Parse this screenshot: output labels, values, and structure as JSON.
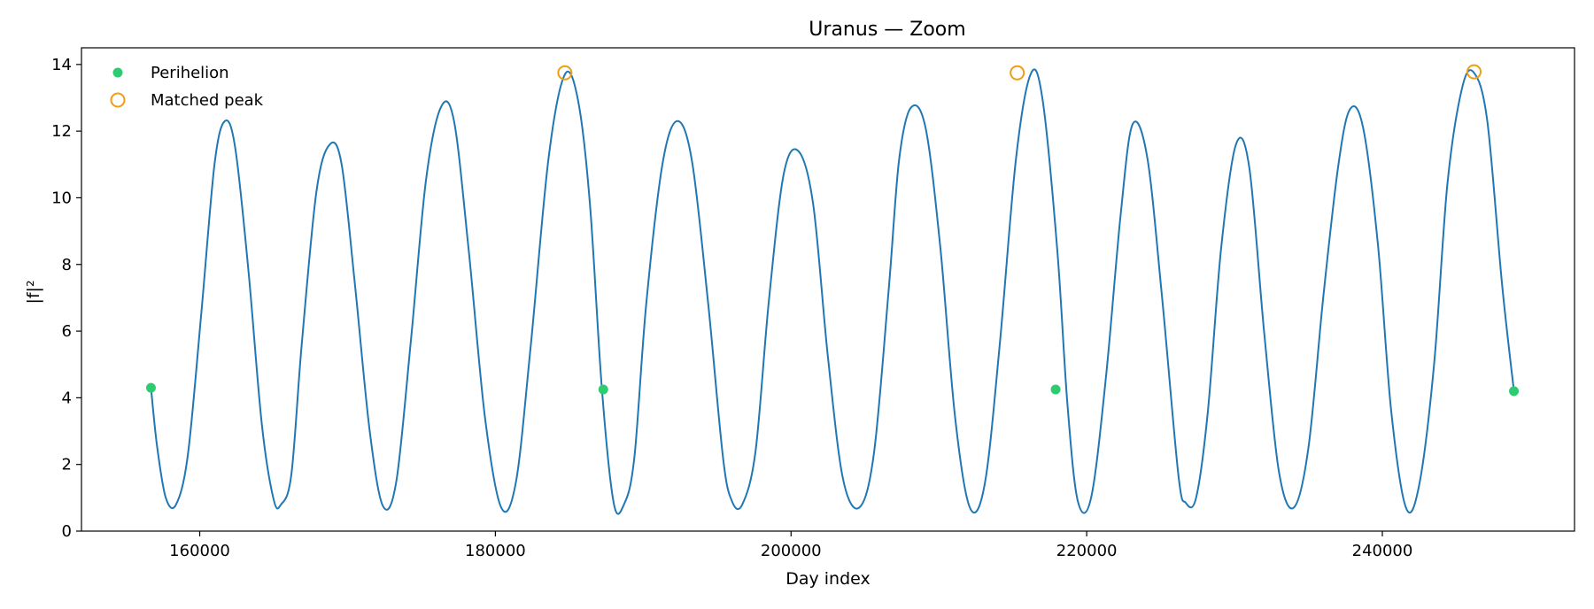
{
  "chart_data": {
    "type": "line",
    "title": "Uranus — Zoom",
    "xlabel": "Day index",
    "ylabel": "|f|²",
    "xlim": [
      152000,
      253000
    ],
    "ylim": [
      0,
      14.5
    ],
    "x_ticks": [
      160000,
      180000,
      200000,
      220000,
      240000
    ],
    "y_ticks": [
      0,
      2,
      4,
      6,
      8,
      10,
      12,
      14
    ],
    "grid": false,
    "legend": {
      "position": "top-left",
      "entries": [
        {
          "label": "Perihelion",
          "marker": "filled-circle",
          "color": "#2ecc71"
        },
        {
          "label": "Matched peak",
          "marker": "open-circle",
          "color": "#f39c12"
        }
      ]
    },
    "series": [
      {
        "style": "line",
        "color": "#1f77b4",
        "x": [
          156700,
          157100,
          157700,
          158400,
          159200,
          160100,
          161000,
          161700,
          162400,
          163300,
          164200,
          165000,
          165500,
          166200,
          166900,
          167900,
          168800,
          169600,
          170500,
          171500,
          172400,
          173300,
          174300,
          175300,
          176300,
          177200,
          178200,
          179300,
          180400,
          181400,
          182400,
          183600,
          184700,
          185600,
          186400,
          187200,
          188000,
          188700,
          189400,
          190200,
          191300,
          192300,
          193300,
          194400,
          195400,
          196000,
          196700,
          197600,
          198500,
          199500,
          200500,
          201500,
          202500,
          203500,
          204600,
          205600,
          206600,
          207300,
          208100,
          209100,
          210100,
          211100,
          212100,
          213100,
          214100,
          215200,
          216200,
          217000,
          218000,
          218700,
          219400,
          220300,
          221300,
          222300,
          223100,
          224100,
          225100,
          226200,
          226700,
          227400,
          228200,
          229100,
          230100,
          231000,
          232000,
          233000,
          234000,
          235000,
          236000,
          237000,
          237800,
          238700,
          239700,
          240600,
          241600,
          242500,
          243500,
          244400,
          245400,
          246200,
          247100,
          248100,
          248900
        ],
        "y": [
          4.3,
          2.6,
          1.0,
          0.8,
          2.3,
          6.5,
          11.0,
          12.3,
          11.5,
          7.8,
          3.2,
          0.95,
          0.8,
          1.7,
          5.6,
          10.2,
          11.6,
          11.0,
          7.4,
          3.0,
          0.75,
          1.5,
          5.8,
          10.5,
          12.7,
          12.3,
          8.4,
          3.4,
          0.7,
          1.5,
          5.6,
          11.2,
          13.7,
          12.9,
          9.8,
          4.3,
          0.85,
          0.8,
          2.2,
          6.8,
          11.0,
          12.3,
          11.1,
          6.8,
          2.2,
          0.9,
          0.8,
          2.4,
          6.9,
          10.7,
          11.4,
          9.8,
          5.2,
          1.6,
          0.7,
          2.3,
          7.2,
          11.1,
          12.7,
          12.1,
          8.5,
          3.4,
          0.7,
          1.4,
          5.5,
          11.1,
          13.7,
          13.0,
          8.5,
          3.8,
          0.9,
          1.0,
          4.6,
          9.5,
          12.2,
          11.2,
          7.0,
          1.7,
          0.85,
          1.0,
          3.6,
          8.5,
          11.6,
          10.9,
          6.0,
          1.8,
          0.7,
          2.5,
          7.0,
          10.9,
          12.65,
          12.1,
          8.6,
          3.6,
          0.7,
          1.4,
          5.0,
          10.4,
          13.3,
          13.75,
          12.3,
          7.4,
          4.2
        ]
      },
      {
        "name": "Perihelion",
        "style": "scatter",
        "marker": "filled-circle",
        "color": "#2ecc71",
        "x": [
          156700,
          187300,
          217900,
          248900
        ],
        "y": [
          4.3,
          4.25,
          4.25,
          4.2
        ]
      },
      {
        "name": "Matched peak",
        "style": "scatter",
        "marker": "open-circle",
        "color": "#f39c12",
        "x": [
          184700,
          215300,
          246200
        ],
        "y": [
          13.75,
          13.75,
          13.78
        ]
      }
    ]
  }
}
